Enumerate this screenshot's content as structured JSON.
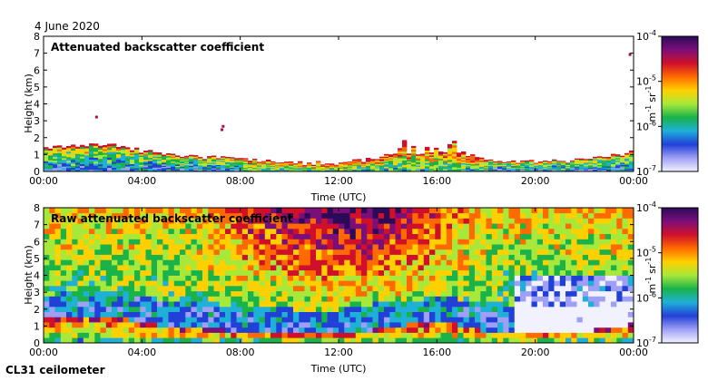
{
  "header": {
    "date": "4 June 2020"
  },
  "footer": {
    "instrument": "CL31 ceilometer"
  },
  "colorbar": {
    "unit_main": "m",
    "unit_main_exp": "-1",
    "unit_second": "sr",
    "unit_second_exp": "-1",
    "tick_base": "10",
    "tick_exps": [
      "-4",
      "-5",
      "-6",
      "-7"
    ],
    "colors": [
      "#2b0a59",
      "#7b0f7a",
      "#d0102a",
      "#ff6a00",
      "#ffd000",
      "#a8e83a",
      "#19b34a",
      "#1fb0d8",
      "#2140d8",
      "#9f9ff5",
      "#f2f2ff"
    ]
  },
  "chart_data": [
    {
      "type": "heatmap",
      "title": "Attenuated backscatter coefficient",
      "xlabel": "Time (UTC)",
      "ylabel": "Height (km)",
      "xticks": [
        "00:00",
        "04:00",
        "08:00",
        "12:00",
        "16:00",
        "20:00",
        "00:00"
      ],
      "yticks": [
        "0",
        "1",
        "2",
        "3",
        "4",
        "5",
        "6",
        "7",
        "8"
      ],
      "xlim": [
        0,
        24
      ],
      "ylim": [
        0,
        8
      ],
      "color_scale": "log",
      "clim": [
        1e-07,
        0.0001
      ],
      "layer_top_km": [
        1.4,
        1.5,
        1.6,
        1.5,
        1.2,
        1.0,
        0.9,
        0.8,
        0.7,
        0.6,
        0.5,
        0.5,
        0.5,
        0.7,
        1.0,
        1.1,
        1.3,
        1.0,
        0.7,
        0.6,
        0.6,
        0.6,
        0.7,
        0.9,
        1.2
      ]
    },
    {
      "type": "heatmap",
      "title": "Raw attenuated backscatter coefficient",
      "xlabel": "Time (UTC)",
      "ylabel": "Height (km)",
      "xticks": [
        "00:00",
        "04:00",
        "08:00",
        "12:00",
        "16:00",
        "20:00",
        "00:00"
      ],
      "yticks": [
        "0",
        "1",
        "2",
        "3",
        "4",
        "5",
        "6",
        "7",
        "8"
      ],
      "xlim": [
        0,
        24
      ],
      "ylim": [
        0,
        8
      ],
      "color_scale": "log",
      "clim": [
        1e-07,
        0.0001
      ]
    }
  ]
}
